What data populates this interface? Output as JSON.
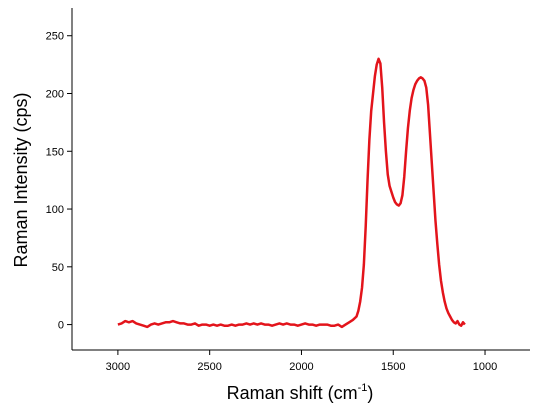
{
  "chart_data": {
    "type": "line",
    "x_label": "Raman shift (cm",
    "x_label_sup": "-1",
    "x_label_end": ")",
    "y_label": "Raman Intensity (cps)",
    "xlim": [
      3250,
      755
    ],
    "ylim": [
      -22,
      274
    ],
    "xticks": [
      3000,
      2500,
      2000,
      1500,
      1000
    ],
    "yticks": [
      0,
      50,
      100,
      150,
      200,
      250
    ],
    "x": [
      3000,
      2980,
      2960,
      2940,
      2920,
      2900,
      2880,
      2860,
      2840,
      2820,
      2800,
      2780,
      2760,
      2740,
      2720,
      2700,
      2680,
      2660,
      2640,
      2620,
      2600,
      2580,
      2560,
      2540,
      2520,
      2500,
      2480,
      2460,
      2440,
      2420,
      2400,
      2380,
      2360,
      2340,
      2320,
      2300,
      2280,
      2260,
      2240,
      2220,
      2200,
      2180,
      2160,
      2140,
      2120,
      2100,
      2080,
      2060,
      2040,
      2020,
      2000,
      1980,
      1960,
      1940,
      1920,
      1900,
      1880,
      1860,
      1840,
      1820,
      1800,
      1780,
      1760,
      1740,
      1720,
      1700,
      1690,
      1680,
      1670,
      1660,
      1650,
      1640,
      1630,
      1620,
      1610,
      1600,
      1590,
      1580,
      1570,
      1560,
      1550,
      1540,
      1530,
      1520,
      1510,
      1500,
      1490,
      1480,
      1470,
      1460,
      1450,
      1440,
      1430,
      1420,
      1410,
      1400,
      1390,
      1380,
      1370,
      1360,
      1350,
      1340,
      1330,
      1320,
      1310,
      1300,
      1290,
      1280,
      1270,
      1260,
      1250,
      1240,
      1230,
      1220,
      1210,
      1200,
      1190,
      1180,
      1170,
      1160,
      1150,
      1140,
      1130,
      1120,
      1110
    ],
    "series": [
      {
        "color": "#e3141b",
        "values": [
          0,
          1,
          3,
          2,
          3,
          1,
          0,
          -1,
          -2,
          0,
          1,
          0,
          1,
          2,
          2,
          3,
          2,
          1,
          1,
          0,
          0,
          1,
          -1,
          0,
          0,
          -1,
          0,
          -1,
          0,
          -1,
          -1,
          0,
          -1,
          0,
          0,
          1,
          0,
          1,
          0,
          1,
          0,
          0,
          -1,
          0,
          1,
          0,
          1,
          0,
          0,
          -1,
          0,
          1,
          0,
          0,
          -1,
          0,
          0,
          0,
          -1,
          -1,
          0,
          -2,
          0,
          2,
          4,
          7,
          12,
          20,
          32,
          52,
          85,
          125,
          160,
          185,
          200,
          215,
          225,
          230,
          226,
          205,
          175,
          150,
          130,
          120,
          115,
          110,
          106,
          104,
          103,
          105,
          112,
          128,
          150,
          170,
          185,
          196,
          203,
          208,
          211,
          213,
          214,
          213,
          211,
          205,
          190,
          165,
          140,
          115,
          90,
          70,
          52,
          38,
          28,
          20,
          14,
          10,
          7,
          4,
          2,
          1,
          3,
          0,
          -1,
          2,
          0
        ]
      }
    ]
  }
}
